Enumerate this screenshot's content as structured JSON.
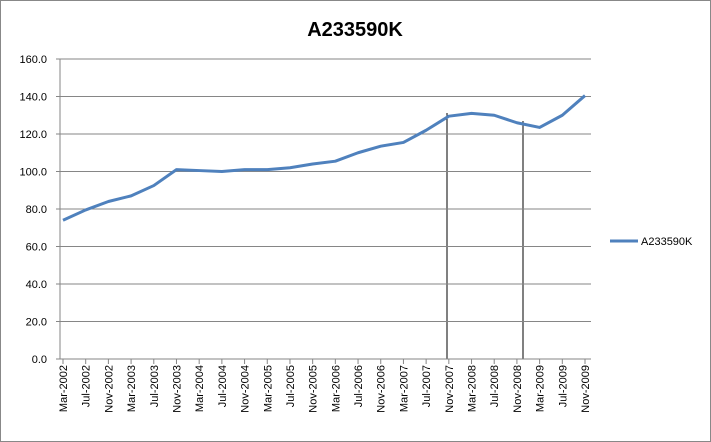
{
  "chart_data": {
    "type": "line",
    "title": "A233590K",
    "categories": [
      "Mar-2002",
      "Jul-2002",
      "Nov-2002",
      "Mar-2003",
      "Jul-2003",
      "Nov-2003",
      "Mar-2004",
      "Jul-2004",
      "Nov-2004",
      "Mar-2005",
      "Jul-2005",
      "Nov-2005",
      "Mar-2006",
      "Jul-2006",
      "Nov-2006",
      "Mar-2007",
      "Jul-2007",
      "Nov-2007",
      "Mar-2008",
      "Jul-2008",
      "Nov-2008",
      "Mar-2009",
      "Jul-2009",
      "Nov-2009"
    ],
    "series": [
      {
        "name": "A233590K",
        "color": "#4f81bd",
        "values": [
          74,
          79.5,
          84,
          87,
          92.5,
          101,
          100.5,
          100,
          101,
          101,
          102,
          104,
          105.5,
          110,
          113.5,
          115.5,
          122,
          129.5,
          131,
          130,
          126,
          123.5,
          130,
          140.5
        ]
      }
    ],
    "ylim": [
      0,
      160
    ],
    "yticks": [
      {
        "value": 0,
        "label": "0.0"
      },
      {
        "value": 20,
        "label": "20.0"
      },
      {
        "value": 40,
        "label": "40.0"
      },
      {
        "value": 60,
        "label": "60.0"
      },
      {
        "value": 80,
        "label": "80.0"
      },
      {
        "value": 100,
        "label": "100.0"
      },
      {
        "value": 120,
        "label": "120.0"
      },
      {
        "value": 140,
        "label": "140.0"
      },
      {
        "value": 160,
        "label": "160.0"
      }
    ],
    "grid": true,
    "legend": "right"
  }
}
